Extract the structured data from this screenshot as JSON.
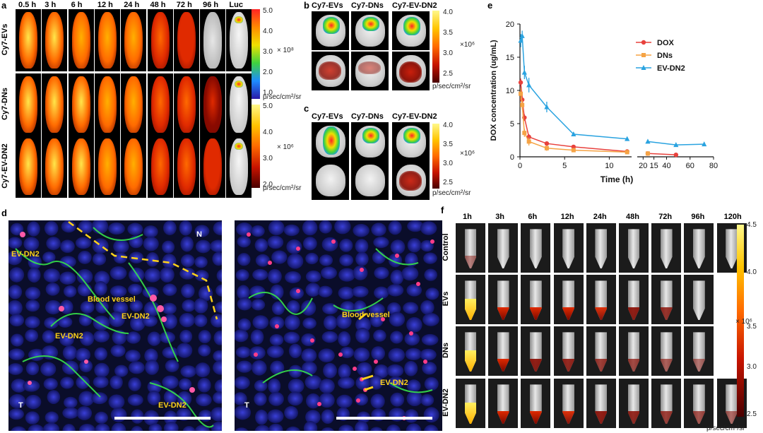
{
  "panels": {
    "a": {
      "label": "a",
      "timepoints": [
        "0.5 h",
        "3 h",
        "6 h",
        "12 h",
        "24 h",
        "48 h",
        "72 h",
        "96 h",
        "Luc"
      ],
      "rows": [
        "Cy7-EVs",
        "Cy7-DNs",
        "Cy7-EV-DN2"
      ],
      "colorbar_top": {
        "ticks": [
          "5.0",
          "4.0",
          "3.0",
          "2.0",
          "1.0"
        ],
        "scale": "× 10⁸",
        "unit": "p/sec/cm²/sr"
      },
      "colorbar_bottom": {
        "ticks": [
          "5.0",
          "4.0",
          "3.0",
          "2.0"
        ],
        "scale": "× 10⁶",
        "unit": "p/sec/cm²/sr"
      },
      "signal_levels": [
        [
          1.0,
          0.9,
          0.85,
          0.8,
          0.75,
          0.6,
          0.5,
          0.15,
          0.3
        ],
        [
          1.0,
          0.95,
          0.9,
          0.85,
          0.8,
          0.7,
          0.55,
          0.35,
          0.3
        ],
        [
          1.0,
          0.95,
          0.9,
          0.85,
          0.8,
          0.7,
          0.6,
          0.45,
          0.3
        ]
      ]
    },
    "b": {
      "label": "b",
      "titles": [
        "Cy7-EVs",
        "Cy7-DNs",
        "Cy7-EV-DN2"
      ],
      "colorbar": {
        "ticks": [
          "4.0",
          "3.5",
          "3.0",
          "2.5"
        ],
        "scale": "×10⁶",
        "unit": "p/sec/cm²/sr"
      }
    },
    "c": {
      "label": "c",
      "titles": [
        "Cy7-EVs",
        "Cy7-DNs",
        "Cy7-EV-DN2"
      ],
      "colorbar": {
        "ticks": [
          "4.0",
          "3.5",
          "3.0",
          "2.5"
        ],
        "scale": "×10⁶",
        "unit": "p/sec/cm²/sr"
      }
    },
    "d": {
      "label": "d",
      "left_labels": {
        "n": "N",
        "t": "T",
        "ev1": "EV-DN2",
        "vessel": "Blood vessel",
        "ev2": "EV-DN2",
        "ev3": "EV-DN2",
        "ev4": "EV-DN2"
      },
      "right_labels": {
        "t": "T",
        "vessel": "Blood vessel",
        "ev": "EV-DN2"
      }
    },
    "f": {
      "label": "f",
      "timepoints": [
        "1h",
        "3h",
        "6h",
        "12h",
        "24h",
        "48h",
        "72h",
        "96h",
        "120h"
      ],
      "rows": [
        "Control",
        "EVs",
        "DNs",
        "EV-DN2"
      ],
      "colorbar": {
        "ticks": [
          "4.5",
          "4.0",
          "3.5",
          "3.0",
          "2.5"
        ],
        "scale": "× 10⁶",
        "unit": "p/sec/cm²/sr"
      },
      "fill_levels": [
        [
          0.05,
          0.0,
          0.0,
          0.0,
          0.0,
          0.0,
          0.0,
          0.0,
          0.0
        ],
        [
          1.0,
          0.7,
          0.6,
          0.6,
          0.55,
          0.5,
          0.4,
          0.0,
          null
        ],
        [
          1.0,
          0.6,
          0.5,
          0.45,
          0.35,
          0.3,
          0.2,
          0.1,
          null
        ],
        [
          1.0,
          0.7,
          0.6,
          0.55,
          0.5,
          0.45,
          0.35,
          0.25,
          0.15
        ]
      ]
    }
  },
  "chart_data": {
    "type": "line",
    "label": "e",
    "title": "",
    "xlabel": "Time (h)",
    "ylabel": "DOX concentration (ug/mL)",
    "ylim": [
      0,
      20
    ],
    "yticks": [
      "0",
      "5",
      "10",
      "15",
      "20"
    ],
    "xticks_left": [
      "0",
      "5",
      "10",
      "15"
    ],
    "xticks_right": [
      "20",
      "40",
      "60",
      "80"
    ],
    "legend_position": "top-right",
    "series": [
      {
        "name": "DOX",
        "color": "#e8413c",
        "x": [
          0.083,
          0.25,
          0.5,
          1,
          3,
          6,
          12,
          24,
          48
        ],
        "y": [
          11.2,
          8.6,
          5.9,
          3.0,
          2.0,
          1.5,
          0.8,
          0.5,
          0.3
        ],
        "err": [
          0.6,
          0.6,
          0.5,
          0.4,
          0.3,
          0.3,
          0.2,
          0.1,
          0.1
        ]
      },
      {
        "name": "DNs",
        "color": "#f5a345",
        "x": [
          0.083,
          0.25,
          0.5,
          1,
          3,
          6,
          12,
          24
        ],
        "y": [
          9.5,
          7.8,
          3.6,
          2.3,
          1.3,
          1.0,
          0.7,
          0.5
        ],
        "err": [
          0.8,
          0.7,
          0.6,
          0.6,
          0.4,
          0.3,
          0.2,
          0.1
        ]
      },
      {
        "name": "EV-DN2",
        "color": "#2aa3e0",
        "x": [
          0.083,
          0.25,
          0.5,
          1,
          3,
          6,
          12,
          24,
          48,
          72
        ],
        "y": [
          17.5,
          18.2,
          12.7,
          10.8,
          7.5,
          3.4,
          2.7,
          2.3,
          1.8,
          1.9
        ],
        "err": [
          1.0,
          0.8,
          1.0,
          1.1,
          0.8,
          0.3,
          0.2,
          0.2,
          0.2,
          0.2
        ]
      }
    ]
  }
}
